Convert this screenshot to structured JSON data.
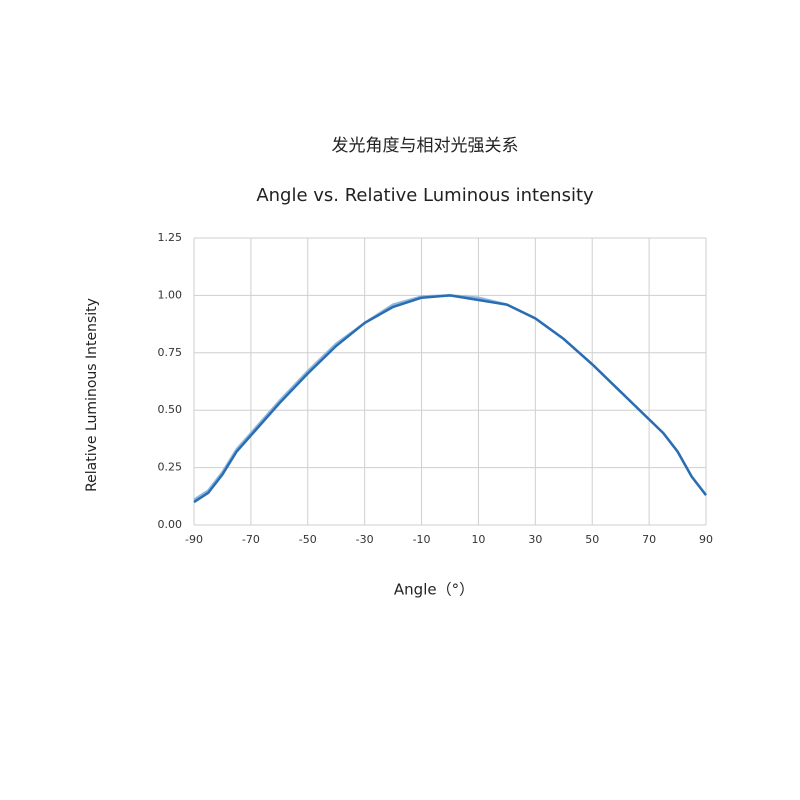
{
  "chart_data": {
    "type": "line",
    "title": "发光角度与相对光强关系",
    "subtitle": "Angle vs. Relative Luminous intensity",
    "x_label": "Angle（°）",
    "y_label": "Relative Luminous Intensity",
    "x": [
      -90,
      -85,
      -80,
      -75,
      -70,
      -60,
      -50,
      -40,
      -30,
      -20,
      -10,
      0,
      10,
      20,
      30,
      40,
      50,
      60,
      70,
      75,
      80,
      85,
      90
    ],
    "series": [
      {
        "color": "#8fb8de",
        "values": [
          0.11,
          0.15,
          0.23,
          0.33,
          0.4,
          0.54,
          0.67,
          0.79,
          0.88,
          0.96,
          0.995,
          1.0,
          0.99,
          0.96,
          0.9,
          0.81,
          0.7,
          0.58,
          0.46,
          0.4,
          0.32,
          0.21,
          0.13
        ]
      },
      {
        "color": "#2a6db3",
        "values": [
          0.1,
          0.14,
          0.22,
          0.32,
          0.39,
          0.53,
          0.66,
          0.78,
          0.88,
          0.95,
          0.99,
          1.0,
          0.98,
          0.96,
          0.9,
          0.81,
          0.7,
          0.58,
          0.46,
          0.4,
          0.32,
          0.21,
          0.13
        ]
      }
    ],
    "xlim": [
      -90,
      90
    ],
    "xticks": [
      -90,
      -70,
      -50,
      -30,
      -10,
      10,
      30,
      50,
      70,
      90
    ],
    "ylim": [
      0,
      1.25
    ],
    "yticks": [
      {
        "value": 0,
        "label": "0.00"
      },
      {
        "value": 0.25,
        "label": "0.25"
      },
      {
        "value": 0.5,
        "label": "0.50"
      },
      {
        "value": 0.75,
        "label": "0.75"
      },
      {
        "value": 1,
        "label": "1.00"
      },
      {
        "value": 1.25,
        "label": "1.25"
      }
    ],
    "grid": true
  }
}
